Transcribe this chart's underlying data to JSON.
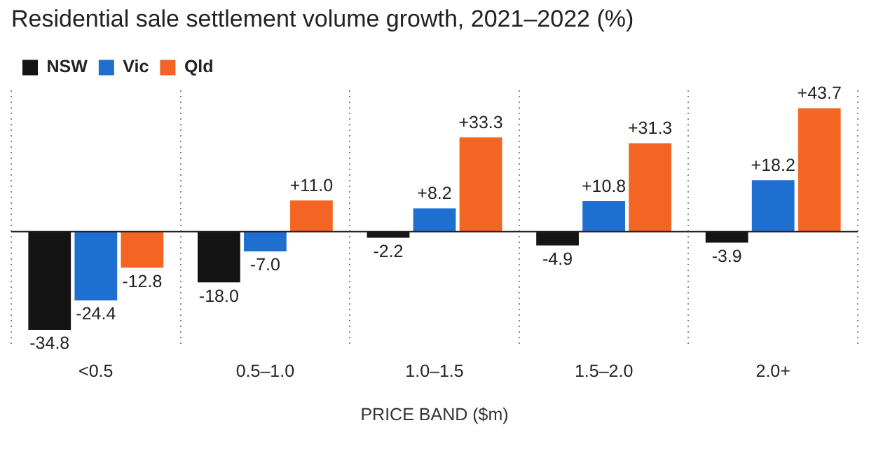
{
  "chart_data": {
    "type": "bar",
    "title": "Residential sale settlement volume growth, 2021–2022 (%)",
    "xlabel": "PRICE BAND ($m)",
    "categories": [
      "<0.5",
      "0.5–1.0",
      "1.0–1.5",
      "1.5–2.0",
      "2.0+"
    ],
    "series": [
      {
        "name": "NSW",
        "color": "#141414",
        "values": [
          -34.8,
          -18.0,
          -2.2,
          -4.9,
          -3.9
        ],
        "value_labels": [
          "-34.8",
          "-18.0",
          "-2.2",
          "-4.9",
          "-3.9"
        ]
      },
      {
        "name": "Vic",
        "color": "#1f6fd1",
        "values": [
          -24.4,
          -7.0,
          8.2,
          10.8,
          18.2
        ],
        "value_labels": [
          "-24.4",
          "-7.0",
          "+8.2",
          "+10.8",
          "+18.2"
        ]
      },
      {
        "name": "Qld",
        "color": "#f26522",
        "values": [
          -12.8,
          11.0,
          33.3,
          31.3,
          43.7
        ],
        "value_labels": [
          "-12.8",
          "+11.0",
          "+33.3",
          "+31.3",
          "+43.7"
        ]
      }
    ],
    "grid": "x",
    "legend": "top left"
  }
}
